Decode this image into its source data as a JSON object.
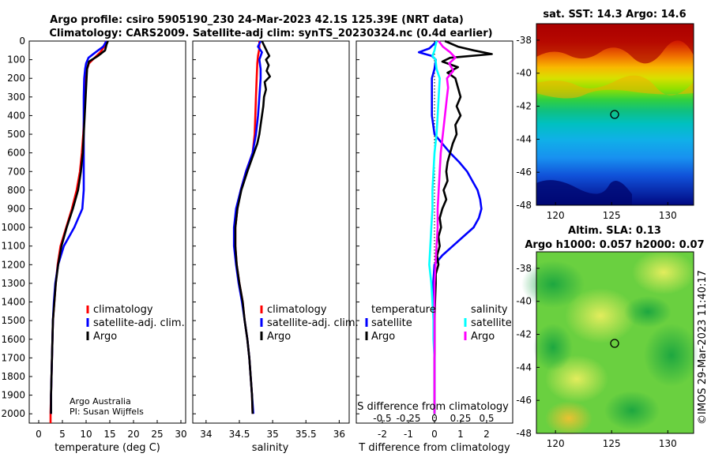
{
  "header": {
    "line1": "Argo profile: csiro 5905190_230 24-Mar-2023 42.1S 125.39E (NRT data)",
    "line2": "Climatology: CARS2009. Satellite-adj clim: synTS_20230324.nc (0.4d earlier)"
  },
  "chart_data": [
    {
      "id": "temperature",
      "type": "line",
      "xlabel": "temperature (deg C)",
      "ylabel": "",
      "xlim": [
        -2,
        31
      ],
      "ylim": [
        2050,
        0
      ],
      "xticks": [
        "0",
        "5",
        "10",
        "15",
        "20",
        "25",
        "30"
      ],
      "xtick_values": [
        0,
        5,
        10,
        15,
        20,
        25,
        30
      ],
      "yticks": [
        "0",
        "100",
        "200",
        "300",
        "400",
        "500",
        "600",
        "700",
        "800",
        "900",
        "1000",
        "1100",
        "1200",
        "1300",
        "1400",
        "1500",
        "1600",
        "1700",
        "1800",
        "1900",
        "2000"
      ],
      "ytick_values": [
        0,
        100,
        200,
        300,
        400,
        500,
        600,
        700,
        800,
        900,
        1000,
        1100,
        1200,
        1300,
        1400,
        1500,
        1600,
        1700,
        1800,
        1900,
        2000
      ],
      "legend": [
        "climatology",
        "satellite-adj. clim.",
        "Argo"
      ],
      "legend_colors": [
        "#ff0000",
        "#0000ff",
        "#000000"
      ],
      "legend_placement": "lower-right",
      "credit_line1": "Argo Australia",
      "credit_line2": "PI: Susan Wijffels",
      "series": [
        {
          "name": "climatology",
          "color": "#ff0000",
          "depth": [
            0,
            30,
            60,
            90,
            120,
            150,
            200,
            300,
            400,
            500,
            600,
            700,
            800,
            900,
            1000,
            1100,
            1200,
            1300,
            1400,
            1500,
            1600,
            1700,
            1800,
            1900,
            1990,
            2000,
            2050
          ],
          "values": [
            14.2,
            13.8,
            13.0,
            11.8,
            10.6,
            10.2,
            10.0,
            9.8,
            9.6,
            9.4,
            9.1,
            8.7,
            8.0,
            7.0,
            5.8,
            4.6,
            4.0,
            3.6,
            3.3,
            3.0,
            2.9,
            2.8,
            2.7,
            2.6,
            2.5,
            2.5,
            2.5
          ]
        },
        {
          "name": "satellite-adj. clim.",
          "color": "#0000ff",
          "depth": [
            0,
            30,
            60,
            90,
            120,
            150,
            200,
            300,
            400,
            500,
            600,
            700,
            800,
            900,
            1000,
            1100,
            1200,
            1300,
            1400,
            1500,
            1600,
            1700,
            1800,
            1900,
            2000
          ],
          "values": [
            14.3,
            13.6,
            12.0,
            10.5,
            10.0,
            9.8,
            9.6,
            9.5,
            9.5,
            9.5,
            9.5,
            9.5,
            9.5,
            9.2,
            7.5,
            5.3,
            4.1,
            3.5,
            3.2,
            3.0,
            2.9,
            2.8,
            2.7,
            2.6,
            2.6
          ]
        },
        {
          "name": "Argo",
          "color": "#000000",
          "depth": [
            0,
            20,
            50,
            80,
            110,
            150,
            200,
            300,
            400,
            500,
            600,
            700,
            800,
            900,
            1000,
            1100,
            1200,
            1300,
            1400,
            1500,
            1600,
            1700,
            1800,
            1900,
            2000
          ],
          "values": [
            14.6,
            14.3,
            14.0,
            12.5,
            10.6,
            10.2,
            10.1,
            9.9,
            9.7,
            9.5,
            9.3,
            8.9,
            8.3,
            7.2,
            5.9,
            4.8,
            4.1,
            3.6,
            3.3,
            3.0,
            2.9,
            2.8,
            2.7,
            2.6,
            2.6
          ]
        }
      ]
    },
    {
      "id": "salinity",
      "type": "line",
      "xlabel": "salinity",
      "xlim": [
        33.8,
        36.15
      ],
      "ylim": [
        2050,
        0
      ],
      "xticks": [
        "34",
        "34.5",
        "35",
        "35.5",
        "36"
      ],
      "xtick_values": [
        34,
        34.5,
        35,
        35.5,
        36
      ],
      "legend": [
        "climatology",
        "satellite-adj. clim.",
        "Argo"
      ],
      "legend_colors": [
        "#ff0000",
        "#0000ff",
        "#000000"
      ],
      "legend_placement": "lower-right",
      "series": [
        {
          "name": "climatology",
          "color": "#ff0000",
          "depth": [
            0,
            40,
            80,
            120,
            200,
            300,
            400,
            500,
            600,
            700,
            800,
            900,
            1000,
            1100,
            1200,
            1300,
            1400,
            1500,
            1600,
            1700,
            1800,
            1900,
            2000
          ],
          "values": [
            34.8,
            34.8,
            34.78,
            34.77,
            34.76,
            34.75,
            34.74,
            34.73,
            34.7,
            34.6,
            34.52,
            34.47,
            34.44,
            34.44,
            34.46,
            34.5,
            34.55,
            34.58,
            34.62,
            34.65,
            34.67,
            34.69,
            34.7
          ]
        },
        {
          "name": "satellite-adj. clim.",
          "color": "#0000ff",
          "depth": [
            0,
            30,
            60,
            100,
            150,
            200,
            300,
            400,
            500,
            600,
            700,
            800,
            900,
            1000,
            1100,
            1200,
            1300,
            1400,
            1500,
            1600,
            1700,
            1800,
            1900,
            2000
          ],
          "values": [
            34.82,
            34.78,
            34.84,
            34.8,
            34.82,
            34.82,
            34.8,
            34.78,
            34.75,
            34.7,
            34.6,
            34.52,
            34.45,
            34.42,
            34.42,
            34.45,
            34.49,
            34.54,
            34.58,
            34.62,
            34.65,
            34.67,
            34.69,
            34.71
          ]
        },
        {
          "name": "Argo",
          "color": "#000000",
          "depth": [
            0,
            30,
            60,
            80,
            100,
            130,
            160,
            190,
            220,
            260,
            300,
            350,
            400,
            450,
            500,
            550,
            600,
            700,
            800,
            900,
            1000,
            1100,
            1200,
            1300,
            1400,
            1500,
            1600,
            1700,
            1800,
            1900,
            2000
          ],
          "values": [
            34.84,
            34.88,
            34.92,
            34.95,
            34.9,
            34.94,
            34.91,
            34.96,
            34.88,
            34.9,
            34.87,
            34.86,
            34.84,
            34.82,
            34.8,
            34.77,
            34.72,
            34.62,
            34.53,
            34.47,
            34.44,
            34.44,
            34.46,
            34.5,
            34.55,
            34.58,
            34.62,
            34.65,
            34.67,
            34.69,
            34.7
          ]
        }
      ]
    },
    {
      "id": "difference",
      "type": "line",
      "xlabel": "T difference from climatology",
      "xlabel_top": "S difference from climatology",
      "xlim": [
        -3,
        3
      ],
      "ylim": [
        2050,
        0
      ],
      "xticks": [
        "-2",
        "-1",
        "0",
        "1",
        "2"
      ],
      "xtick_values": [
        -2,
        -1,
        0,
        1,
        2
      ],
      "sticks": [
        "-0.5",
        "-0.25",
        "0",
        "0.25",
        "0.5"
      ],
      "stick_values": [
        -0.5,
        -0.25,
        0,
        0.25,
        0.5
      ],
      "s_scale": 4,
      "legend_temperature": "temperature",
      "legend_salinity": "salinity",
      "legend_t_items": [
        "satellite",
        "Argo"
      ],
      "legend_t_colors": [
        "#0000ff",
        "#000000"
      ],
      "legend_s_items": [
        "satellite",
        "Argo"
      ],
      "legend_s_colors": [
        "#00ffff",
        "#ff00ff"
      ],
      "series": [
        {
          "name": "T satellite",
          "color": "#0000ff",
          "depth": [
            0,
            40,
            60,
            80,
            100,
            150,
            200,
            300,
            400,
            500,
            550,
            600,
            650,
            700,
            750,
            800,
            850,
            900,
            950,
            1000,
            1050,
            1100,
            1150,
            1200,
            1300,
            1400,
            1500,
            1600,
            1700,
            1800,
            1900,
            2000
          ],
          "values": [
            0.1,
            -0.2,
            -0.6,
            -0.1,
            0.05,
            0.0,
            -0.1,
            -0.1,
            -0.1,
            0.0,
            0.3,
            0.6,
            0.95,
            1.25,
            1.45,
            1.65,
            1.75,
            1.8,
            1.7,
            1.5,
            1.1,
            0.7,
            0.3,
            0.0,
            -0.05,
            -0.05,
            0.0,
            0.0,
            0.0,
            0.0,
            0.0,
            0.0
          ]
        },
        {
          "name": "T Argo",
          "color": "#000000",
          "depth": [
            0,
            30,
            50,
            70,
            90,
            110,
            140,
            170,
            200,
            250,
            300,
            350,
            400,
            450,
            500,
            550,
            600,
            650,
            700,
            750,
            800,
            850,
            900,
            950,
            1000,
            1050,
            1100,
            1150,
            1200,
            1250,
            1300,
            1400,
            1500,
            1600,
            1700,
            1800,
            1900,
            2000
          ],
          "values": [
            0.4,
            0.9,
            1.5,
            2.2,
            0.6,
            0.3,
            0.9,
            0.5,
            0.8,
            0.9,
            1.0,
            0.85,
            1.0,
            0.8,
            0.85,
            0.7,
            0.6,
            0.5,
            0.45,
            0.5,
            0.35,
            0.45,
            0.3,
            0.2,
            0.25,
            0.15,
            0.2,
            0.1,
            0.15,
            0.05,
            0.05,
            0.02,
            0.0,
            0.0,
            0.0,
            0.0,
            0.0,
            0.0
          ]
        },
        {
          "name": "S satellite",
          "color": "#00ffff",
          "depth": [
            0,
            50,
            80,
            100,
            150,
            200,
            300,
            400,
            500,
            600,
            700,
            800,
            900,
            1000,
            1100,
            1200,
            1300,
            1400,
            1500,
            1600,
            1700,
            1800,
            1900,
            2000
          ],
          "values": [
            0.02,
            0.0,
            -0.02,
            0.01,
            0.02,
            0.05,
            0.04,
            0.03,
            0.02,
            0.0,
            -0.01,
            -0.02,
            -0.02,
            -0.03,
            -0.04,
            -0.05,
            -0.03,
            -0.02,
            -0.01,
            -0.01,
            0.0,
            0.0,
            0.0,
            0.0
          ]
        },
        {
          "name": "S Argo",
          "color": "#ff00ff",
          "depth": [
            0,
            30,
            60,
            90,
            120,
            160,
            200,
            250,
            300,
            400,
            500,
            600,
            700,
            800,
            900,
            1000,
            1100,
            1200,
            1300,
            1400,
            1500,
            1600,
            1700,
            1800,
            1900,
            2000
          ],
          "values": [
            0.04,
            0.08,
            0.15,
            0.2,
            0.14,
            0.18,
            0.12,
            0.13,
            0.12,
            0.1,
            0.08,
            0.06,
            0.05,
            0.04,
            0.03,
            0.03,
            0.02,
            0.01,
            0.0,
            0.0,
            0.0,
            0.0,
            0.0,
            0.0,
            0.0,
            0.0
          ]
        }
      ]
    }
  ],
  "maps": {
    "sst": {
      "title": "sat. SST: 14.3 Argo: 14.6",
      "yticks": [
        "-38",
        "-40",
        "-42",
        "-44",
        "-46",
        "-48"
      ],
      "xticks": [
        "120",
        "125",
        "130"
      ]
    },
    "sla": {
      "title1": "Altim. SLA: 0.13",
      "title2": "Argo h1000: 0.057 h2000: 0.07",
      "yticks": [
        "-38",
        "-40",
        "-42",
        "-44",
        "-46",
        "-48"
      ],
      "xticks": [
        "120",
        "125",
        "130"
      ]
    },
    "float_position": {
      "lon": 125.39,
      "lat": -42.1
    }
  },
  "footer": {
    "timestamp": "©IMOS 29-Mar-2023 11:40:17"
  }
}
